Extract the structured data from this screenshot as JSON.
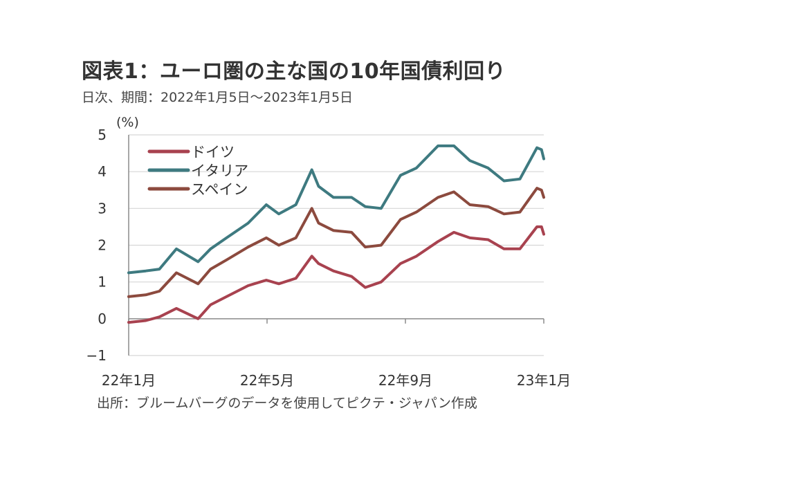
{
  "title": "図表1：ユーロ圏の主な国の10年国債利回り",
  "subtitle": "日次、期間：2022年1月5日～2023年1月5日",
  "source": "出所：ブルームバーグのデータを使用してピクテ・ジャパン作成",
  "chart_data": {
    "type": "line",
    "ylabel": "(%)",
    "ylim": [
      -1,
      5
    ],
    "y_ticks": [
      5,
      4,
      3,
      2,
      1,
      0,
      -1
    ],
    "y_tick_labels": [
      "5",
      "4",
      "3",
      "2",
      "1",
      "0",
      "−1"
    ],
    "xlim": [
      "2022-01-05",
      "2023-01-05"
    ],
    "x_ticks": [
      "2022-01-01",
      "2022-05-01",
      "2022-09-01",
      "2023-01-01"
    ],
    "x_tick_labels": [
      "22年1月",
      "22年5月",
      "22年9月",
      "23年1月"
    ],
    "grid": "horizontal",
    "legend_position": "top-left",
    "series": [
      {
        "name": "ドイツ",
        "color": "#A8424F",
        "x": [
          "2022-01-05",
          "2022-01-20",
          "2022-02-01",
          "2022-02-16",
          "2022-03-07",
          "2022-03-18",
          "2022-04-01",
          "2022-04-20",
          "2022-05-06",
          "2022-05-17",
          "2022-06-01",
          "2022-06-15",
          "2022-06-21",
          "2022-07-04",
          "2022-07-20",
          "2022-08-01",
          "2022-08-15",
          "2022-09-01",
          "2022-09-15",
          "2022-10-04",
          "2022-10-18",
          "2022-11-01",
          "2022-11-17",
          "2022-12-01",
          "2022-12-15",
          "2022-12-30",
          "2023-01-03",
          "2023-01-05"
        ],
        "values": [
          -0.1,
          -0.05,
          0.05,
          0.28,
          0.0,
          0.38,
          0.6,
          0.9,
          1.05,
          0.95,
          1.1,
          1.7,
          1.5,
          1.3,
          1.15,
          0.85,
          1.0,
          1.5,
          1.7,
          2.1,
          2.35,
          2.2,
          2.15,
          1.9,
          1.9,
          2.5,
          2.5,
          2.3
        ]
      },
      {
        "name": "イタリア",
        "color": "#3E7A80",
        "x": [
          "2022-01-05",
          "2022-01-20",
          "2022-02-01",
          "2022-02-16",
          "2022-03-07",
          "2022-03-18",
          "2022-04-01",
          "2022-04-20",
          "2022-05-06",
          "2022-05-17",
          "2022-06-01",
          "2022-06-15",
          "2022-06-21",
          "2022-07-04",
          "2022-07-20",
          "2022-08-01",
          "2022-08-15",
          "2022-09-01",
          "2022-09-15",
          "2022-10-04",
          "2022-10-18",
          "2022-11-01",
          "2022-11-17",
          "2022-12-01",
          "2022-12-15",
          "2022-12-30",
          "2023-01-03",
          "2023-01-05"
        ],
        "values": [
          1.25,
          1.3,
          1.35,
          1.9,
          1.55,
          1.9,
          2.2,
          2.6,
          3.1,
          2.85,
          3.1,
          4.05,
          3.6,
          3.3,
          3.3,
          3.05,
          3.0,
          3.9,
          4.1,
          4.7,
          4.7,
          4.3,
          4.1,
          3.75,
          3.8,
          4.65,
          4.6,
          4.35
        ]
      },
      {
        "name": "スペイン",
        "color": "#8C4A3E",
        "x": [
          "2022-01-05",
          "2022-01-20",
          "2022-02-01",
          "2022-02-16",
          "2022-03-07",
          "2022-03-18",
          "2022-04-01",
          "2022-04-20",
          "2022-05-06",
          "2022-05-17",
          "2022-06-01",
          "2022-06-15",
          "2022-06-21",
          "2022-07-04",
          "2022-07-20",
          "2022-08-01",
          "2022-08-15",
          "2022-09-01",
          "2022-09-15",
          "2022-10-04",
          "2022-10-18",
          "2022-11-01",
          "2022-11-17",
          "2022-12-01",
          "2022-12-15",
          "2022-12-30",
          "2023-01-03",
          "2023-01-05"
        ],
        "values": [
          0.6,
          0.65,
          0.75,
          1.25,
          0.95,
          1.35,
          1.6,
          1.95,
          2.2,
          2.0,
          2.2,
          3.0,
          2.6,
          2.4,
          2.35,
          1.95,
          2.0,
          2.7,
          2.9,
          3.3,
          3.45,
          3.1,
          3.05,
          2.85,
          2.9,
          3.55,
          3.5,
          3.3
        ]
      }
    ]
  }
}
